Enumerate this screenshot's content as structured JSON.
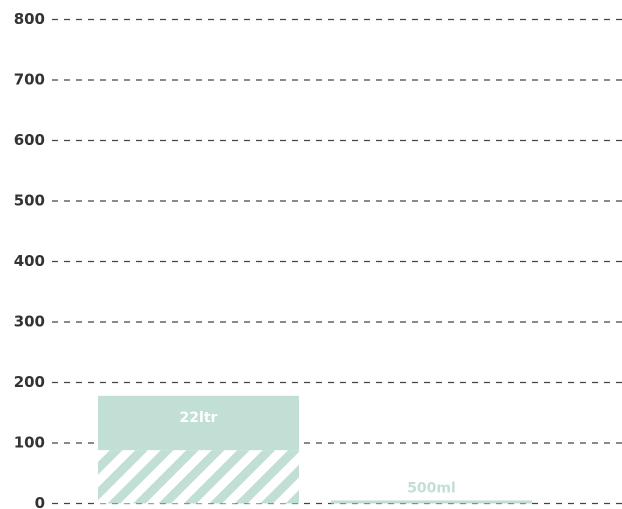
{
  "chart_data": {
    "type": "bar",
    "title": "",
    "xlabel": "",
    "ylabel": "",
    "ylim": [
      0,
      800
    ],
    "y_ticks": [
      "0",
      "100",
      "200",
      "300",
      "400",
      "500",
      "600",
      "700",
      "800"
    ],
    "grid": true,
    "categories": [
      "22ltr",
      "500ml"
    ],
    "bars": [
      {
        "label": "22ltr",
        "value": 178,
        "hatched_value": 88
      },
      {
        "label": "500ml",
        "value": 5,
        "hatched_value": 0
      }
    ],
    "colors": {
      "bar": "#c2dfd5",
      "hatch_stripe": "#c2dfd5",
      "hatch_background": "#ffffff",
      "bar_label_inside": "#ffffff",
      "bar_label_outside": "#c2dfd5",
      "grid": "#444444",
      "tick_text": "#333333"
    }
  }
}
